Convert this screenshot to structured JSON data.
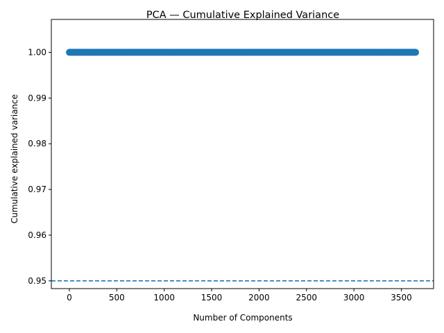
{
  "chart_data": {
    "type": "line",
    "title": "PCA — Cumulative Explained Variance",
    "xlabel": "Number of Components",
    "ylabel": "Cumulative explained variance",
    "xlim": [
      -190,
      3840
    ],
    "ylim": [
      0.9483,
      1.0072
    ],
    "x_ticks": [
      0,
      500,
      1000,
      1500,
      2000,
      2500,
      3000,
      3500
    ],
    "y_ticks": [
      0.95,
      0.96,
      0.97,
      0.98,
      0.99,
      1.0
    ],
    "x_tick_labels": [
      "0",
      "500",
      "1000",
      "1500",
      "2000",
      "2500",
      "3000",
      "3500"
    ],
    "y_tick_labels": [
      "0.95",
      "0.96",
      "0.97",
      "0.98",
      "0.99",
      "1.00"
    ],
    "grid": false,
    "series": [
      {
        "marker": "circle",
        "color": "#1f77b4",
        "x_range": [
          1,
          3650
        ],
        "values": "1.00 at every component",
        "y": 1.0
      }
    ],
    "reference_lines": [
      {
        "orientation": "horizontal",
        "y": 0.95,
        "style": "dashed",
        "color": "#1f77b4"
      }
    ]
  }
}
